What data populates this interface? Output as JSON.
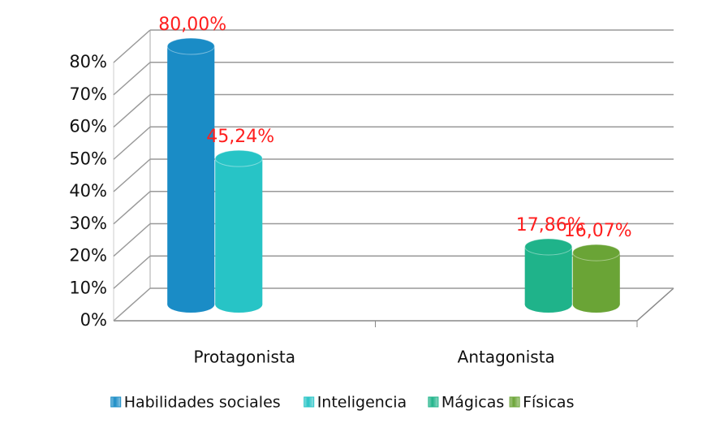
{
  "chart_data": {
    "type": "bar3d",
    "categories": [
      "Protagonista",
      "Antagonista"
    ],
    "series": [
      {
        "name": "Habilidades sociales",
        "color": "#1a8cc6",
        "values": [
          80,
          null
        ],
        "value_labels": [
          "80,00%",
          null
        ]
      },
      {
        "name": "Inteligencia",
        "color": "#27c4c6",
        "values": [
          45.24,
          null
        ],
        "value_labels": [
          "45,24%",
          null
        ]
      },
      {
        "name": "Mágicas",
        "color": "#1fb38a",
        "values": [
          null,
          17.86
        ],
        "value_labels": [
          null,
          "17,86%"
        ]
      },
      {
        "name": "Físicas",
        "color": "#6aa436",
        "values": [
          null,
          16.07
        ],
        "value_labels": [
          null,
          "16,07%"
        ]
      }
    ],
    "ylim": [
      0,
      80
    ],
    "yticks": [
      {
        "value": 0,
        "label": "0%"
      },
      {
        "value": 10,
        "label": "10%"
      },
      {
        "value": 20,
        "label": "20%"
      },
      {
        "value": 30,
        "label": "30%"
      },
      {
        "value": 40,
        "label": "40%"
      },
      {
        "value": 50,
        "label": "50%"
      },
      {
        "value": 60,
        "label": "60%"
      },
      {
        "value": 70,
        "label": "70%"
      },
      {
        "value": 80,
        "label": "80%"
      }
    ],
    "grid": true,
    "legend": "bottom"
  }
}
